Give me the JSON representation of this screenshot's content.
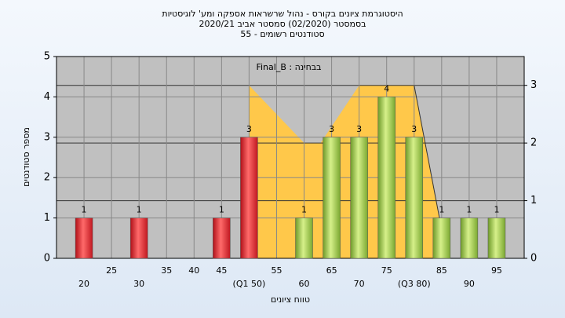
{
  "chart_data": {
    "type": "bar",
    "title": "היסטוגרמת ציונים בקורס - נהול שרשראות אספקה ומע' לוגיסטיות",
    "subtitle": "בסמסטר  (02/2020)  סמסטר אביב 2020/21",
    "subtitle2": "סטודנטים רשומים - 55",
    "annotation": "בבחינה : Final_B",
    "ylabel": "מספר סטודנטים",
    "xlabel": "טווח ציונים",
    "x": [
      20,
      30,
      45,
      50,
      60,
      65,
      70,
      75,
      80,
      85,
      90,
      95
    ],
    "values": [
      1,
      1,
      1,
      3,
      1,
      3,
      3,
      4,
      3,
      1,
      1,
      1
    ],
    "colors": [
      "red",
      "red",
      "red",
      "red",
      "green",
      "green",
      "green",
      "green",
      "green",
      "green",
      "green",
      "green"
    ],
    "xlim": [
      15,
      100
    ],
    "xticks": [
      20,
      25,
      30,
      35,
      40,
      45,
      {
        "value": 50,
        "label": "(Q1 50)"
      },
      55,
      60,
      65,
      70,
      75,
      {
        "value": 80,
        "label": "(Q3 80)"
      },
      85,
      90,
      95
    ],
    "ylim": [
      0,
      5
    ],
    "yticks": [
      0,
      1,
      2,
      3,
      4,
      5
    ],
    "y2lim": [
      0,
      3.5
    ],
    "y2ticks": [
      0,
      1,
      2,
      3
    ],
    "area": {
      "axis": "y2",
      "color": "#ffc84a",
      "x": [
        50,
        60,
        63,
        70,
        80,
        85
      ],
      "values": [
        3,
        2,
        2,
        3,
        3,
        0.5
      ]
    },
    "grid": true
  }
}
